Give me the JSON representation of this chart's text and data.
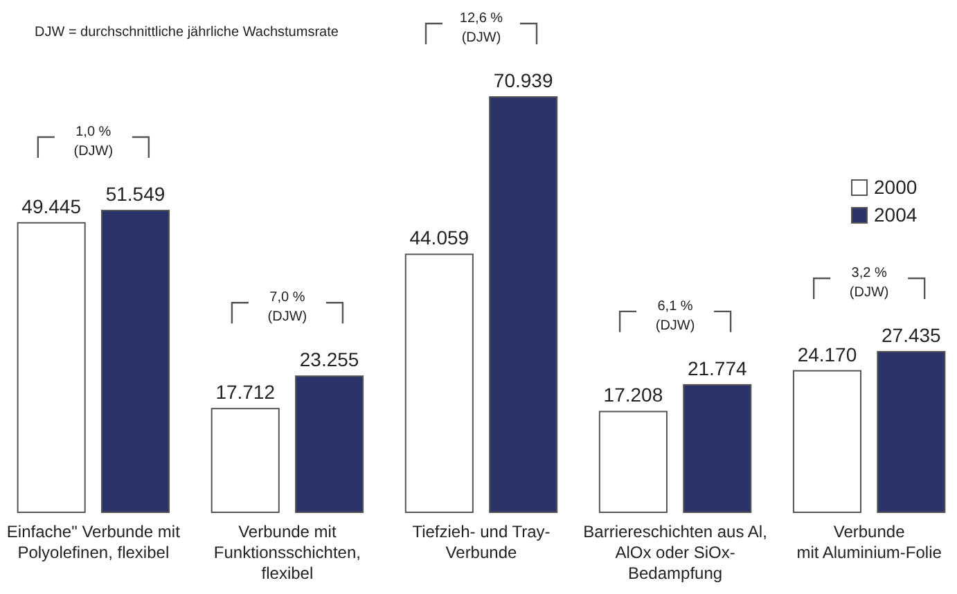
{
  "chart_data": {
    "type": "bar",
    "categories": [
      "Einfache\" Verbunde mit\nPolyolefinen, flexibel",
      "Verbunde mit\nFunktionsschichten,\nflexibel",
      "Tiefzieh- und Tray-\nVerbunde",
      "Barriereschichten aus Al,\nAlOx oder SiOx-\nBedampfung",
      "Verbunde\nmit Aluminium-Folie"
    ],
    "series": [
      {
        "name": "2000",
        "color": "#ffffff",
        "values": [
          49445,
          17712,
          44059,
          17208,
          24170
        ],
        "value_labels": [
          "49.445",
          "17.712",
          "44.059",
          "17.208",
          "24.170"
        ]
      },
      {
        "name": "2004",
        "color": "#2b3468",
        "values": [
          51549,
          23255,
          70939,
          21774,
          27435
        ],
        "value_labels": [
          "51.549",
          "23.255",
          "70.939",
          "21.774",
          "27.435"
        ]
      }
    ],
    "legend": "top right",
    "annotations": [
      "DJW = durchschnittliche jährliche Wachstumsrate",
      "1,0 %\n(DJW)",
      "7,0 %\n(DJW)",
      "12,6 %\n(DJW)",
      "6,1 %\n(DJW)",
      "3,2 %\n(DJW)"
    ]
  }
}
